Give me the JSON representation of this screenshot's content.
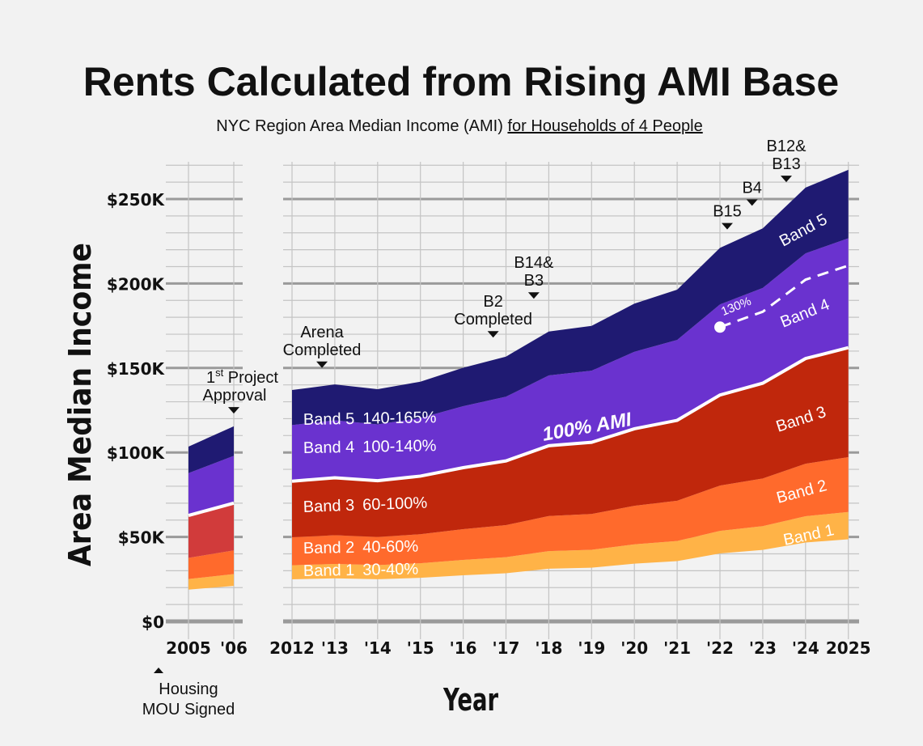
{
  "chart_data": {
    "type": "area",
    "title": "Rents Calculated from Rising AMI Base",
    "subtitle_plain": "NYC Region Area Median Income (AMI) ",
    "subtitle_underlined": "for Households of 4 People",
    "xlabel": "Year",
    "ylabel": "Area Median Income",
    "ylim": [
      0,
      270
    ],
    "y_ticks": [
      {
        "v": 0,
        "label": "$0"
      },
      {
        "v": 50,
        "label": "$50K"
      },
      {
        "v": 100,
        "label": "$100K"
      },
      {
        "v": 150,
        "label": "$150K"
      },
      {
        "v": 200,
        "label": "$200K"
      },
      {
        "v": 250,
        "label": "$250K"
      }
    ],
    "panels": [
      {
        "years": [
          2005,
          2006
        ],
        "x_labels": [
          "2005",
          "'06"
        ],
        "ami_100": [
          62.7,
          70
        ]
      },
      {
        "years": [
          2012,
          2013,
          2014,
          2015,
          2016,
          2017,
          2018,
          2019,
          2020,
          2021,
          2022,
          2023,
          2024,
          2025
        ],
        "x_labels": [
          "2012",
          "'13",
          "'14",
          "'15",
          "'16",
          "'17",
          "'18",
          "'19",
          "'20",
          "'21",
          "'22",
          "'23",
          "'24",
          "2025"
        ],
        "ami_100": [
          83,
          85,
          83.3,
          86,
          91,
          95,
          104,
          106,
          114,
          119,
          134,
          141,
          155.6,
          162
        ]
      }
    ],
    "units": "$K",
    "bands": [
      {
        "name": "Band 1",
        "range": "30-40%",
        "low": 0.3,
        "high": 0.4,
        "color": "#ffb347"
      },
      {
        "name": "Band 2",
        "range": "40-60%",
        "low": 0.4,
        "high": 0.6,
        "color": "#ff6a2c"
      },
      {
        "name": "Band 3",
        "range": "60-100%",
        "low": 0.6,
        "high": 1.0,
        "color": "#c0270c",
        "color_early": "#d13b3b"
      },
      {
        "name": "Band 4",
        "range": "100-140%",
        "low": 1.0,
        "high": 1.4,
        "color": "#6a32cf"
      },
      {
        "name": "Band 5",
        "range": "140-165%",
        "low": 1.4,
        "high": 1.65,
        "color": "#1f1a72"
      }
    ],
    "ami_line_label": "100% AMI",
    "dashed_line": {
      "label": "130%",
      "pct": 1.3,
      "from_year": 2022,
      "to_year": 2025
    },
    "annotations": [
      {
        "lines": [
          "1st Project",
          "Approval"
        ],
        "sup": "st",
        "year": 2006,
        "value": 123
      },
      {
        "lines": [
          "Arena",
          "Completed"
        ],
        "year": 2012.7,
        "value": 150
      },
      {
        "lines": [
          "B2",
          "Completed"
        ],
        "year": 2016.7,
        "value": 168
      },
      {
        "lines": [
          "B14&",
          "B3"
        ],
        "year": 2017.65,
        "value": 191
      },
      {
        "lines": [
          "B15"
        ],
        "year": 2022.17,
        "value": 232
      },
      {
        "lines": [
          "B4"
        ],
        "year": 2022.75,
        "value": 246
      },
      {
        "lines": [
          "B12&",
          "B13"
        ],
        "year": 2023.55,
        "value": 260
      },
      {
        "lines": [
          "Housing",
          "MOU Signed"
        ],
        "year": 2004.3,
        "below_axis": true
      }
    ]
  }
}
